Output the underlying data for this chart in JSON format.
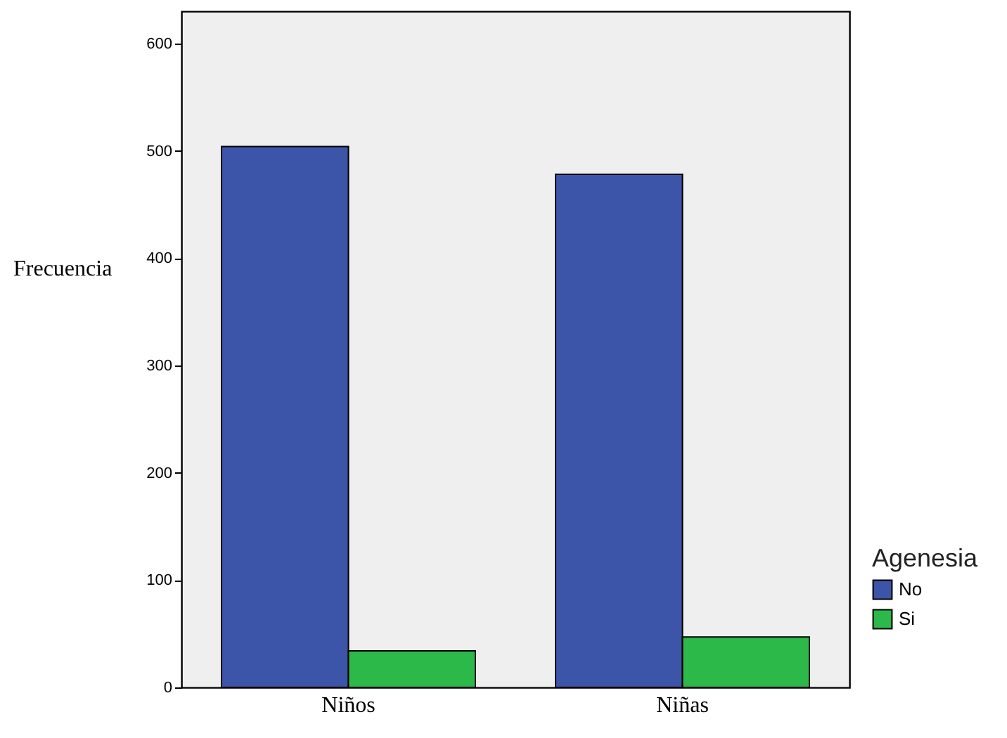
{
  "chart_data": {
    "type": "bar",
    "ylabel": "Frecuencia",
    "legend_title": "Agenesia",
    "categories": [
      "Niños",
      "Niñas"
    ],
    "series": [
      {
        "name": "No",
        "color": "#3d55a8",
        "values": [
          504,
          478
        ]
      },
      {
        "name": "Si",
        "color": "#2db84a",
        "values": [
          34,
          47
        ]
      }
    ],
    "ylim": [
      0,
      630
    ],
    "yticks": [
      0,
      100,
      200,
      300,
      400,
      500,
      600
    ],
    "grid": false,
    "legend": "bottom right"
  }
}
